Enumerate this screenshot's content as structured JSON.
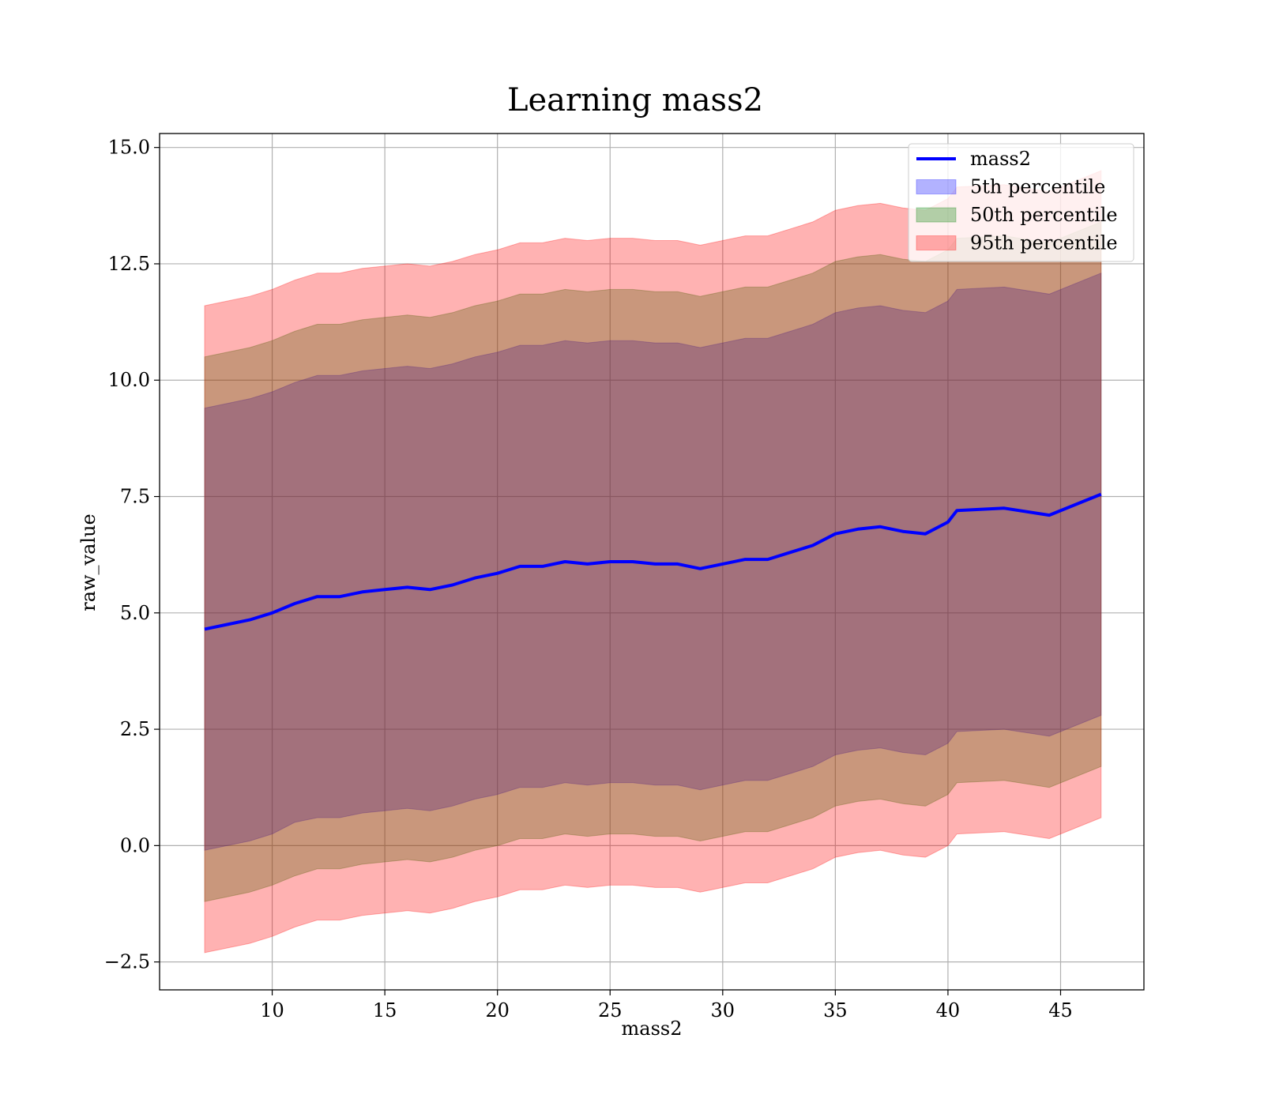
{
  "chart_data": {
    "type": "line",
    "title": "Learning mass2",
    "xlabel": "mass2",
    "ylabel": "raw_value",
    "xlim": [
      5.0,
      48.7
    ],
    "ylim": [
      -3.1,
      15.3
    ],
    "xticks": [
      10,
      15,
      20,
      25,
      30,
      35,
      40,
      45
    ],
    "xtick_labels": [
      "10",
      "15",
      "20",
      "25",
      "30",
      "35",
      "40",
      "45"
    ],
    "yticks": [
      -2.5,
      0.0,
      2.5,
      5.0,
      7.5,
      10.0,
      12.5,
      15.0
    ],
    "ytick_labels": [
      "−2.5",
      "0.0",
      "2.5",
      "5.0",
      "7.5",
      "10.0",
      "12.5",
      "15.0"
    ],
    "grid": true,
    "legend_position": "top-right",
    "legend": [
      "mass2",
      "5th percentile",
      "50th percentile",
      "95th percentile"
    ],
    "x": [
      7.0,
      8.0,
      9.0,
      10.0,
      11.0,
      12.0,
      13.0,
      14.0,
      15.0,
      16.0,
      17.0,
      18.0,
      19.0,
      20.0,
      21.0,
      22.0,
      23.0,
      24.0,
      25.0,
      26.0,
      27.0,
      28.0,
      29.0,
      30.0,
      31.0,
      32.0,
      33.0,
      34.0,
      35.0,
      36.0,
      37.0,
      38.0,
      39.0,
      40.0,
      40.4,
      42.5,
      44.5,
      46.8
    ],
    "series": [
      {
        "name": "mass2",
        "type": "line",
        "color": "#0000ff",
        "values": [
          4.65,
          4.75,
          4.85,
          5.0,
          5.2,
          5.35,
          5.35,
          5.45,
          5.5,
          5.55,
          5.5,
          5.6,
          5.75,
          5.85,
          6.0,
          6.0,
          6.1,
          6.05,
          6.1,
          6.1,
          6.05,
          6.05,
          5.95,
          6.05,
          6.15,
          6.15,
          6.3,
          6.45,
          6.7,
          6.8,
          6.85,
          6.75,
          6.7,
          6.95,
          7.2,
          7.25,
          7.1,
          7.55
        ]
      },
      {
        "name": "5th percentile",
        "type": "band",
        "color": "#0000ff",
        "lower": [
          -0.1,
          0.0,
          0.1,
          0.25,
          0.5,
          0.6,
          0.6,
          0.7,
          0.75,
          0.8,
          0.75,
          0.85,
          1.0,
          1.1,
          1.25,
          1.25,
          1.35,
          1.3,
          1.35,
          1.35,
          1.3,
          1.3,
          1.2,
          1.3,
          1.4,
          1.4,
          1.55,
          1.7,
          1.95,
          2.05,
          2.1,
          2.0,
          1.95,
          2.2,
          2.45,
          2.5,
          2.35,
          2.8
        ],
        "upper": [
          9.4,
          9.5,
          9.6,
          9.75,
          9.95,
          10.1,
          10.1,
          10.2,
          10.25,
          10.3,
          10.25,
          10.35,
          10.5,
          10.6,
          10.75,
          10.75,
          10.85,
          10.8,
          10.85,
          10.85,
          10.8,
          10.8,
          10.7,
          10.8,
          10.9,
          10.9,
          11.05,
          11.2,
          11.45,
          11.55,
          11.6,
          11.5,
          11.45,
          11.7,
          11.95,
          12.0,
          11.85,
          12.3
        ]
      },
      {
        "name": "50th percentile",
        "type": "band",
        "color": "#008000",
        "lower": [
          -1.2,
          -1.1,
          -1.0,
          -0.85,
          -0.65,
          -0.5,
          -0.5,
          -0.4,
          -0.35,
          -0.3,
          -0.35,
          -0.25,
          -0.1,
          0.0,
          0.15,
          0.15,
          0.25,
          0.2,
          0.25,
          0.25,
          0.2,
          0.2,
          0.1,
          0.2,
          0.3,
          0.3,
          0.45,
          0.6,
          0.85,
          0.95,
          1.0,
          0.9,
          0.85,
          1.1,
          1.35,
          1.4,
          1.25,
          1.7
        ],
        "upper": [
          10.5,
          10.6,
          10.7,
          10.85,
          11.05,
          11.2,
          11.2,
          11.3,
          11.35,
          11.4,
          11.35,
          11.45,
          11.6,
          11.7,
          11.85,
          11.85,
          11.95,
          11.9,
          11.95,
          11.95,
          11.9,
          11.9,
          11.8,
          11.9,
          12.0,
          12.0,
          12.15,
          12.3,
          12.55,
          12.65,
          12.7,
          12.6,
          12.55,
          12.8,
          13.05,
          13.1,
          12.95,
          13.4
        ]
      },
      {
        "name": "95th percentile",
        "type": "band",
        "color": "#ff0000",
        "lower": [
          -2.3,
          -2.2,
          -2.1,
          -1.95,
          -1.75,
          -1.6,
          -1.6,
          -1.5,
          -1.45,
          -1.4,
          -1.45,
          -1.35,
          -1.2,
          -1.1,
          -0.95,
          -0.95,
          -0.85,
          -0.9,
          -0.85,
          -0.85,
          -0.9,
          -0.9,
          -1.0,
          -0.9,
          -0.8,
          -0.8,
          -0.65,
          -0.5,
          -0.25,
          -0.15,
          -0.1,
          -0.2,
          -0.25,
          0.0,
          0.25,
          0.3,
          0.15,
          0.6
        ],
        "upper": [
          11.6,
          11.7,
          11.8,
          11.95,
          12.15,
          12.3,
          12.3,
          12.4,
          12.45,
          12.5,
          12.45,
          12.55,
          12.7,
          12.8,
          12.95,
          12.95,
          13.05,
          13.0,
          13.05,
          13.05,
          13.0,
          13.0,
          12.9,
          13.0,
          13.1,
          13.1,
          13.25,
          13.4,
          13.65,
          13.75,
          13.8,
          13.7,
          13.65,
          13.9,
          14.15,
          14.2,
          14.05,
          14.5
        ]
      }
    ]
  }
}
